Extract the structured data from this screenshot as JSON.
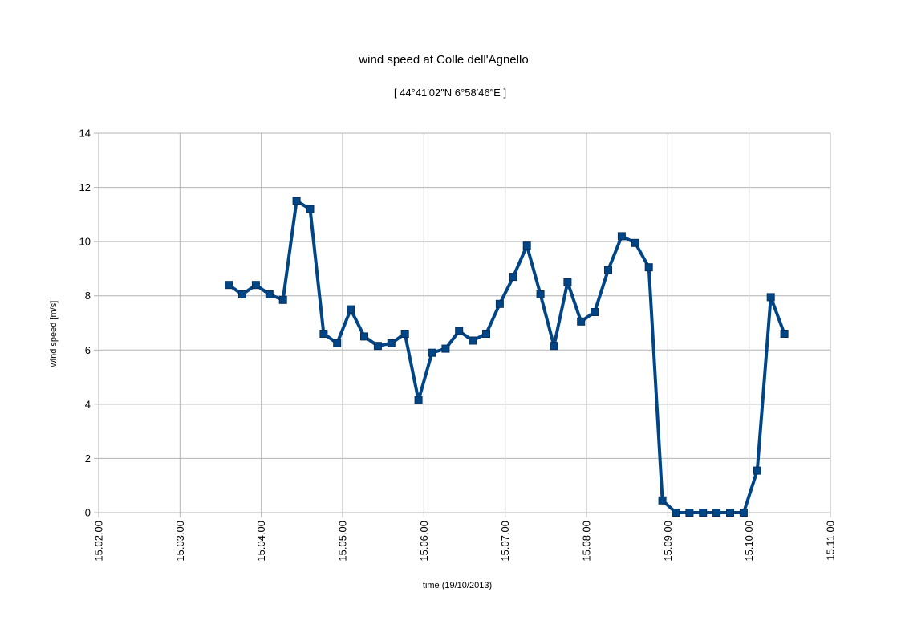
{
  "chart_data": {
    "type": "line",
    "title": "wind speed at Colle dell'Agnello",
    "subtitle": "[ 44°41′02″N 6°58′46″E ]",
    "xlabel": "time (19/10/2013)",
    "ylabel": "wind speed [m/s]",
    "x_ticks": [
      "15.02.00",
      "15.03.00",
      "15.04.00",
      "15.05.00",
      "15.06.00",
      "15.07.00",
      "15.08.00",
      "15.09.00",
      "15.10.00",
      "15.11.00"
    ],
    "y_ticks": [
      "0",
      "2",
      "4",
      "6",
      "8",
      "10",
      "12",
      "14"
    ],
    "xlim": [
      "15:02:00",
      "15:11:00"
    ],
    "ylim": [
      0,
      14
    ],
    "grid": true,
    "legend": "none",
    "series_color": "#004586",
    "series": [
      {
        "x": [
          "15:03:36",
          "15:03:46",
          "15:03:56",
          "15:04:06",
          "15:04:16",
          "15:04:26",
          "15:04:36",
          "15:04:46",
          "15:04:56",
          "15:05:06",
          "15:05:16",
          "15:05:26",
          "15:05:36",
          "15:05:46",
          "15:05:56",
          "15:06:06",
          "15:06:16",
          "15:06:26",
          "15:06:36",
          "15:06:46",
          "15:06:56",
          "15:07:06",
          "15:07:16",
          "15:07:26",
          "15:07:36",
          "15:07:46",
          "15:07:56",
          "15:08:06",
          "15:08:16",
          "15:08:26",
          "15:08:36",
          "15:08:46",
          "15:08:56",
          "15:09:06",
          "15:09:16",
          "15:09:26",
          "15:09:36",
          "15:09:46",
          "15:09:56",
          "15:10:06",
          "15:10:16",
          "15:10:26"
        ],
        "y": [
          8.4,
          8.05,
          8.4,
          8.05,
          7.85,
          11.5,
          11.2,
          6.6,
          6.25,
          7.5,
          6.5,
          6.15,
          6.25,
          6.6,
          4.15,
          5.9,
          6.05,
          6.7,
          6.35,
          6.6,
          7.7,
          8.7,
          9.85,
          8.05,
          6.15,
          8.5,
          7.05,
          7.4,
          8.95,
          10.2,
          9.95,
          9.05,
          0.45,
          0,
          0,
          0,
          0,
          0,
          0,
          1.55,
          7.95,
          6.6
        ]
      }
    ]
  }
}
